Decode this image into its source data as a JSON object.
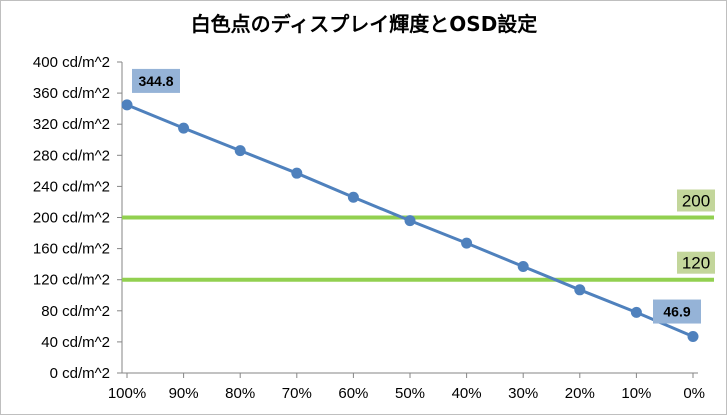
{
  "chart_data": {
    "type": "line",
    "title": "白色点のディスプレイ輝度とOSD設定",
    "categories": [
      "100%",
      "90%",
      "80%",
      "70%",
      "60%",
      "50%",
      "40%",
      "30%",
      "20%",
      "10%",
      "0%"
    ],
    "series": [
      {
        "values": [
          344.8,
          315,
          286,
          257,
          226,
          196,
          167,
          137,
          107,
          78,
          46.9
        ],
        "color": "#4f81bd"
      }
    ],
    "data_labels": [
      {
        "index": 0,
        "text": "344.8"
      },
      {
        "index": 10,
        "text": "46.9"
      }
    ],
    "data_label_bg": "#95b3d7",
    "reference_lines": [
      {
        "value": 200,
        "label": "200"
      },
      {
        "value": 120,
        "label": "120"
      }
    ],
    "reference_color": "#92d050",
    "reference_label_bg": "#c3d69b",
    "y_ticks": [
      "0 cd/m^2",
      "40 cd/m^2",
      "80 cd/m^2",
      "120 cd/m^2",
      "160 cd/m^2",
      "200 cd/m^2",
      "240 cd/m^2",
      "280 cd/m^2",
      "320 cd/m^2",
      "360 cd/m^2",
      "400 cd/m^2"
    ],
    "ylim": [
      0,
      400
    ],
    "ystep": 40,
    "grid": false,
    "xlabel": "",
    "ylabel": ""
  }
}
